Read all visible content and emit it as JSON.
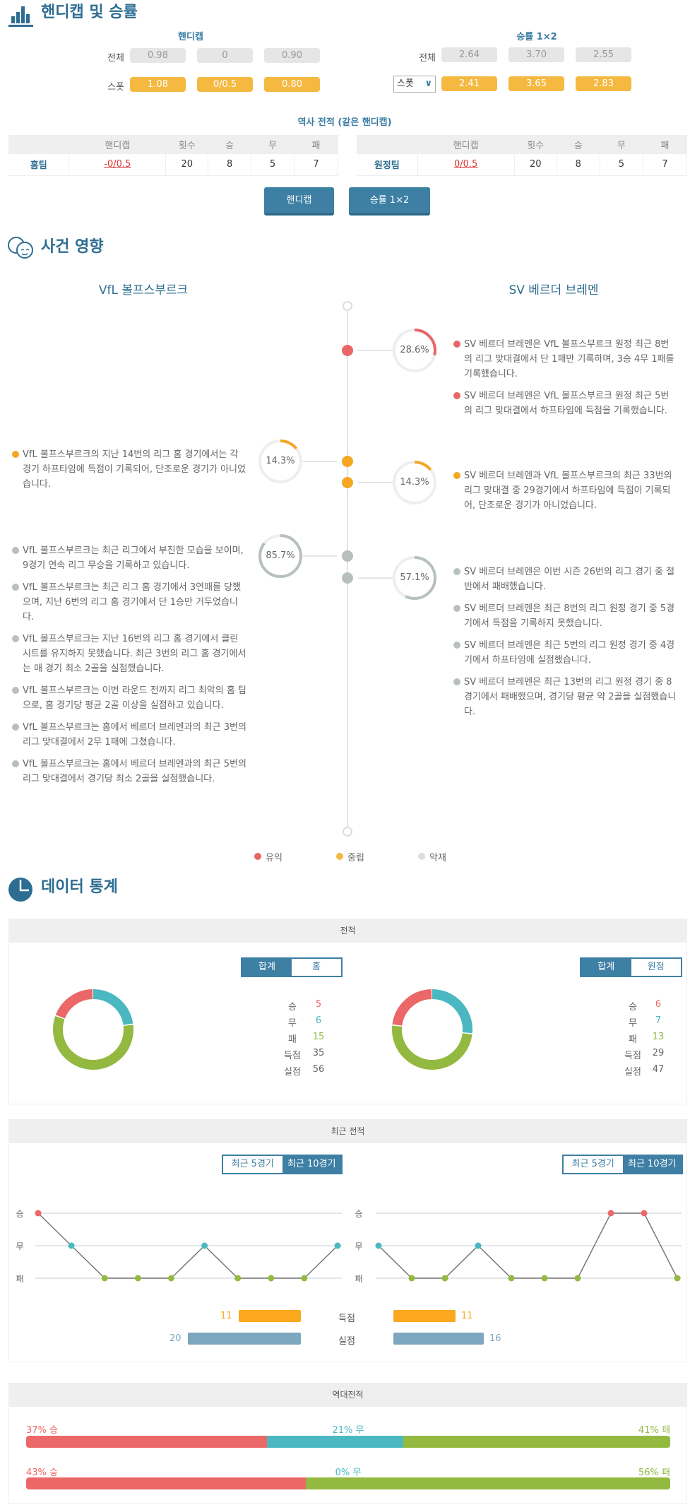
{
  "handicap_section": {
    "title": "핸디캡 및 승률",
    "icon": "bar-chart-icon",
    "handicap": {
      "header": "핸디캡",
      "rows": [
        {
          "label": "전체",
          "values": [
            "0.98",
            "0",
            "0.90"
          ]
        },
        {
          "label": "스폿",
          "values": [
            "1.08",
            "0/0.5",
            "0.80"
          ]
        }
      ]
    },
    "odds": {
      "header": "승률 1×2",
      "rows": [
        {
          "label": "전체",
          "values": [
            "2.64",
            "3.70",
            "2.55"
          ]
        },
        {
          "label": "스폿",
          "values": [
            "2.41",
            "3.65",
            "2.83"
          ]
        }
      ],
      "select_value": "스폿"
    },
    "history_title": "역사 전적 (같은 핸디캡)",
    "columns": [
      "핸디캡",
      "횟수",
      "승",
      "무",
      "패"
    ],
    "home": {
      "team": "홈팀",
      "handicap": "-0/0.5",
      "count": "20",
      "win": "8",
      "draw": "5",
      "lose": "7"
    },
    "away": {
      "team": "원정팀",
      "handicap": "0/0.5",
      "count": "20",
      "win": "8",
      "draw": "5",
      "lose": "7"
    },
    "buttons": [
      "핸디캡",
      "승률 1×2"
    ]
  },
  "impact_section": {
    "title": "사건 영향",
    "icon": "faces-icon",
    "home_team": "VfL 볼프스부르크",
    "away_team": "SV 베르더 브레멘",
    "rings": [
      {
        "value": "28.6%",
        "pct": 28.6,
        "type": "positive"
      },
      {
        "value": "14.3%",
        "pct": 14.3,
        "type": "neutral"
      },
      {
        "value": "14.3%",
        "pct": 14.3,
        "type": "neutral"
      },
      {
        "value": "85.7%",
        "pct": 85.7,
        "type": "negative"
      },
      {
        "value": "57.1%",
        "pct": 57.1,
        "type": "negative"
      }
    ],
    "away_positive": [
      "SV 베르더 브레멘은 VfL 볼프스부르크 원정 최근 8번의 리그 맞대결에서 단 1패만 기록하며, 3승 4무 1패를 기록했습니다.",
      "SV 베르더 브레멘은 VfL 볼프스부르크 원정 최근 5번의 리그 맞대결에서 하프타임에 득점을 기록했습니다."
    ],
    "home_neutral": [
      "VfL 볼프스부르크의 지난 14번의 리그 홈 경기에서는 각 경기 하프타임에 득점이 기록되어, 단조로운 경기가 아니었습니다."
    ],
    "away_neutral": [
      "SV 베르더 브레멘과 VfL 볼프스부르크의 최근 33번의 리그 맞대결 중 29경기에서 하프타임에 득점이 기록되어, 단조로운 경기가 아니었습니다."
    ],
    "home_negative": [
      "VfL 볼프스부르크는 최근 리그에서 부진한 모습을 보이며, 9경기 연속 리그 무승을 기록하고 있습니다.",
      "VfL 볼프스부르크는 최근 리그 홈 경기에서 3연패를 당했으며, 지난 6번의 리그 홈 경기에서 단 1승만 거두었습니다.",
      "VfL 볼프스부르크는 지난 16번의 리그 홈 경기에서 클린시트를 유지하지 못했습니다. 최근 3번의 리그 홈 경기에서는 매 경기 최소 2골을 실점했습니다.",
      "VfL 볼프스부르크는 이번 라운드 전까지 리그 최악의 홈 팀으로, 홈 경기당 평균 2골 이상을 실점하고 있습니다.",
      "VfL 볼프스부르크는 홈에서 베르더 브레멘과의 최근 3번의 리그 맞대결에서 2무 1패에 그쳤습니다.",
      "VfL 볼프스부르크는 홈에서 베르더 브레멘과의 최근 5번의 리그 맞대결에서 경기당 최소 2골을 실점했습니다."
    ],
    "away_negative": [
      "SV 베르더 브레멘은 이번 시즌 26번의 리그 경기 중 절반에서 패배했습니다.",
      "SV 베르더 브레멘은 최근 8번의 리그 원정 경기 중 5경기에서 득점을 기록하지 못했습니다.",
      "SV 베르더 브레멘은 최근 5번의 리그 원정 경기 중 4경기에서 하프타임에 실점했습니다.",
      "SV 베르더 브레멘은 최근 13번의 리그 원정 경기 중 8경기에서 패배했으며, 경기당 평균 약 2골을 실점했습니다."
    ],
    "legend": [
      "유익",
      "중립",
      "악재"
    ]
  },
  "colors": {
    "accent": "#3e7fa4",
    "positive": "#e96566",
    "neutral": "#f5a623",
    "negative": "#b7c0bf",
    "win": "#ec6767",
    "draw": "#4bb8c1",
    "lose": "#93b941",
    "goals": "#fba81f",
    "conceded": "#7da7bf"
  },
  "stats_section": {
    "title": "데이터 통계",
    "icon": "pie-chart-icon",
    "record": {
      "header": "전적",
      "home": {
        "toggle": [
          "합계",
          "홈"
        ],
        "labels": [
          "승",
          "무",
          "패",
          "득점",
          "실점"
        ],
        "values": [
          "5",
          "6",
          "15",
          "35",
          "56"
        ]
      },
      "away": {
        "toggle": [
          "합계",
          "원정"
        ],
        "labels": [
          "승",
          "무",
          "패",
          "득점",
          "실점"
        ],
        "values": [
          "6",
          "7",
          "13",
          "29",
          "47"
        ]
      }
    },
    "recent": {
      "header": "최근 전적",
      "toggle": [
        "최근 5경기",
        "최근 10경기"
      ],
      "axis": [
        "승",
        "무",
        "패"
      ],
      "home_results": [
        "W",
        "D",
        "L",
        "L",
        "L",
        "D",
        "L",
        "L",
        "L",
        "D"
      ],
      "away_results": [
        "D",
        "L",
        "L",
        "D",
        "L",
        "L",
        "L",
        "W",
        "W",
        "L"
      ],
      "goals_label": "득점",
      "conceded_label": "실점",
      "home_goals": "11",
      "home_conceded": "20",
      "away_goals": "11",
      "away_conceded": "16"
    },
    "h2h": {
      "header": "역대전적",
      "rows": [
        {
          "win": "37% 승",
          "draw": "21% 무",
          "lose": "41% 패",
          "w": 37,
          "d": 21,
          "l": 41
        },
        {
          "win": "43% 승",
          "draw": "0% 무",
          "lose": "56% 패",
          "w": 43,
          "d": 0,
          "l": 56
        }
      ]
    }
  }
}
